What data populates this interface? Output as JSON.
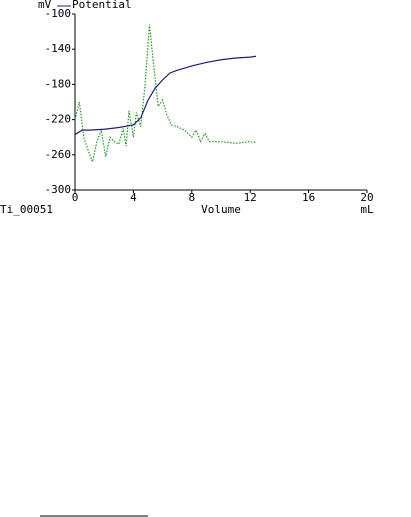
{
  "chart_data": {
    "type": "line",
    "y_unit": "mV",
    "x_unit": "mL",
    "x_label": "Volume",
    "sample_label": "Ti_00051",
    "xlim": [
      0,
      20
    ],
    "xticks": [
      0,
      4,
      8,
      12,
      16,
      20
    ],
    "ylim": [
      -300,
      -100
    ],
    "yticks": [
      -100,
      -140,
      -180,
      -220,
      -260,
      -300
    ],
    "series": [
      {
        "name": "Potential",
        "color": "#1c1c80",
        "style": "solid",
        "x": [
          0,
          0.5,
          1,
          2,
          3,
          4,
          4.5,
          5,
          5.5,
          6,
          6.5,
          7,
          8,
          9,
          10,
          11,
          12,
          12.4
        ],
        "values": [
          -237,
          -232,
          -232,
          -231,
          -229,
          -226,
          -218,
          -198,
          -184,
          -175,
          -167,
          -164,
          -159,
          -155,
          -152,
          -150,
          -149,
          -148
        ]
      },
      {
        "color": "#1f9a1f",
        "style": "dotted",
        "x": [
          0,
          0.3,
          0.6,
          0.9,
          1.2,
          1.5,
          1.8,
          2.1,
          2.4,
          2.7,
          3.0,
          3.3,
          3.5,
          3.7,
          4.0,
          4.2,
          4.5,
          4.8,
          5.1,
          5.4,
          5.7,
          6.0,
          6.3,
          6.6,
          7,
          7.5,
          8,
          8.3,
          8.6,
          8.9,
          9.2,
          10,
          11,
          12,
          12.4
        ],
        "values": [
          -220,
          -200,
          -240,
          -255,
          -268,
          -245,
          -232,
          -262,
          -240,
          -245,
          -248,
          -230,
          -250,
          -210,
          -240,
          -212,
          -228,
          -180,
          -112,
          -160,
          -205,
          -198,
          -215,
          -226,
          -228,
          -232,
          -240,
          -232,
          -245,
          -236,
          -245,
          -245,
          -247,
          -245,
          -246
        ]
      }
    ]
  }
}
